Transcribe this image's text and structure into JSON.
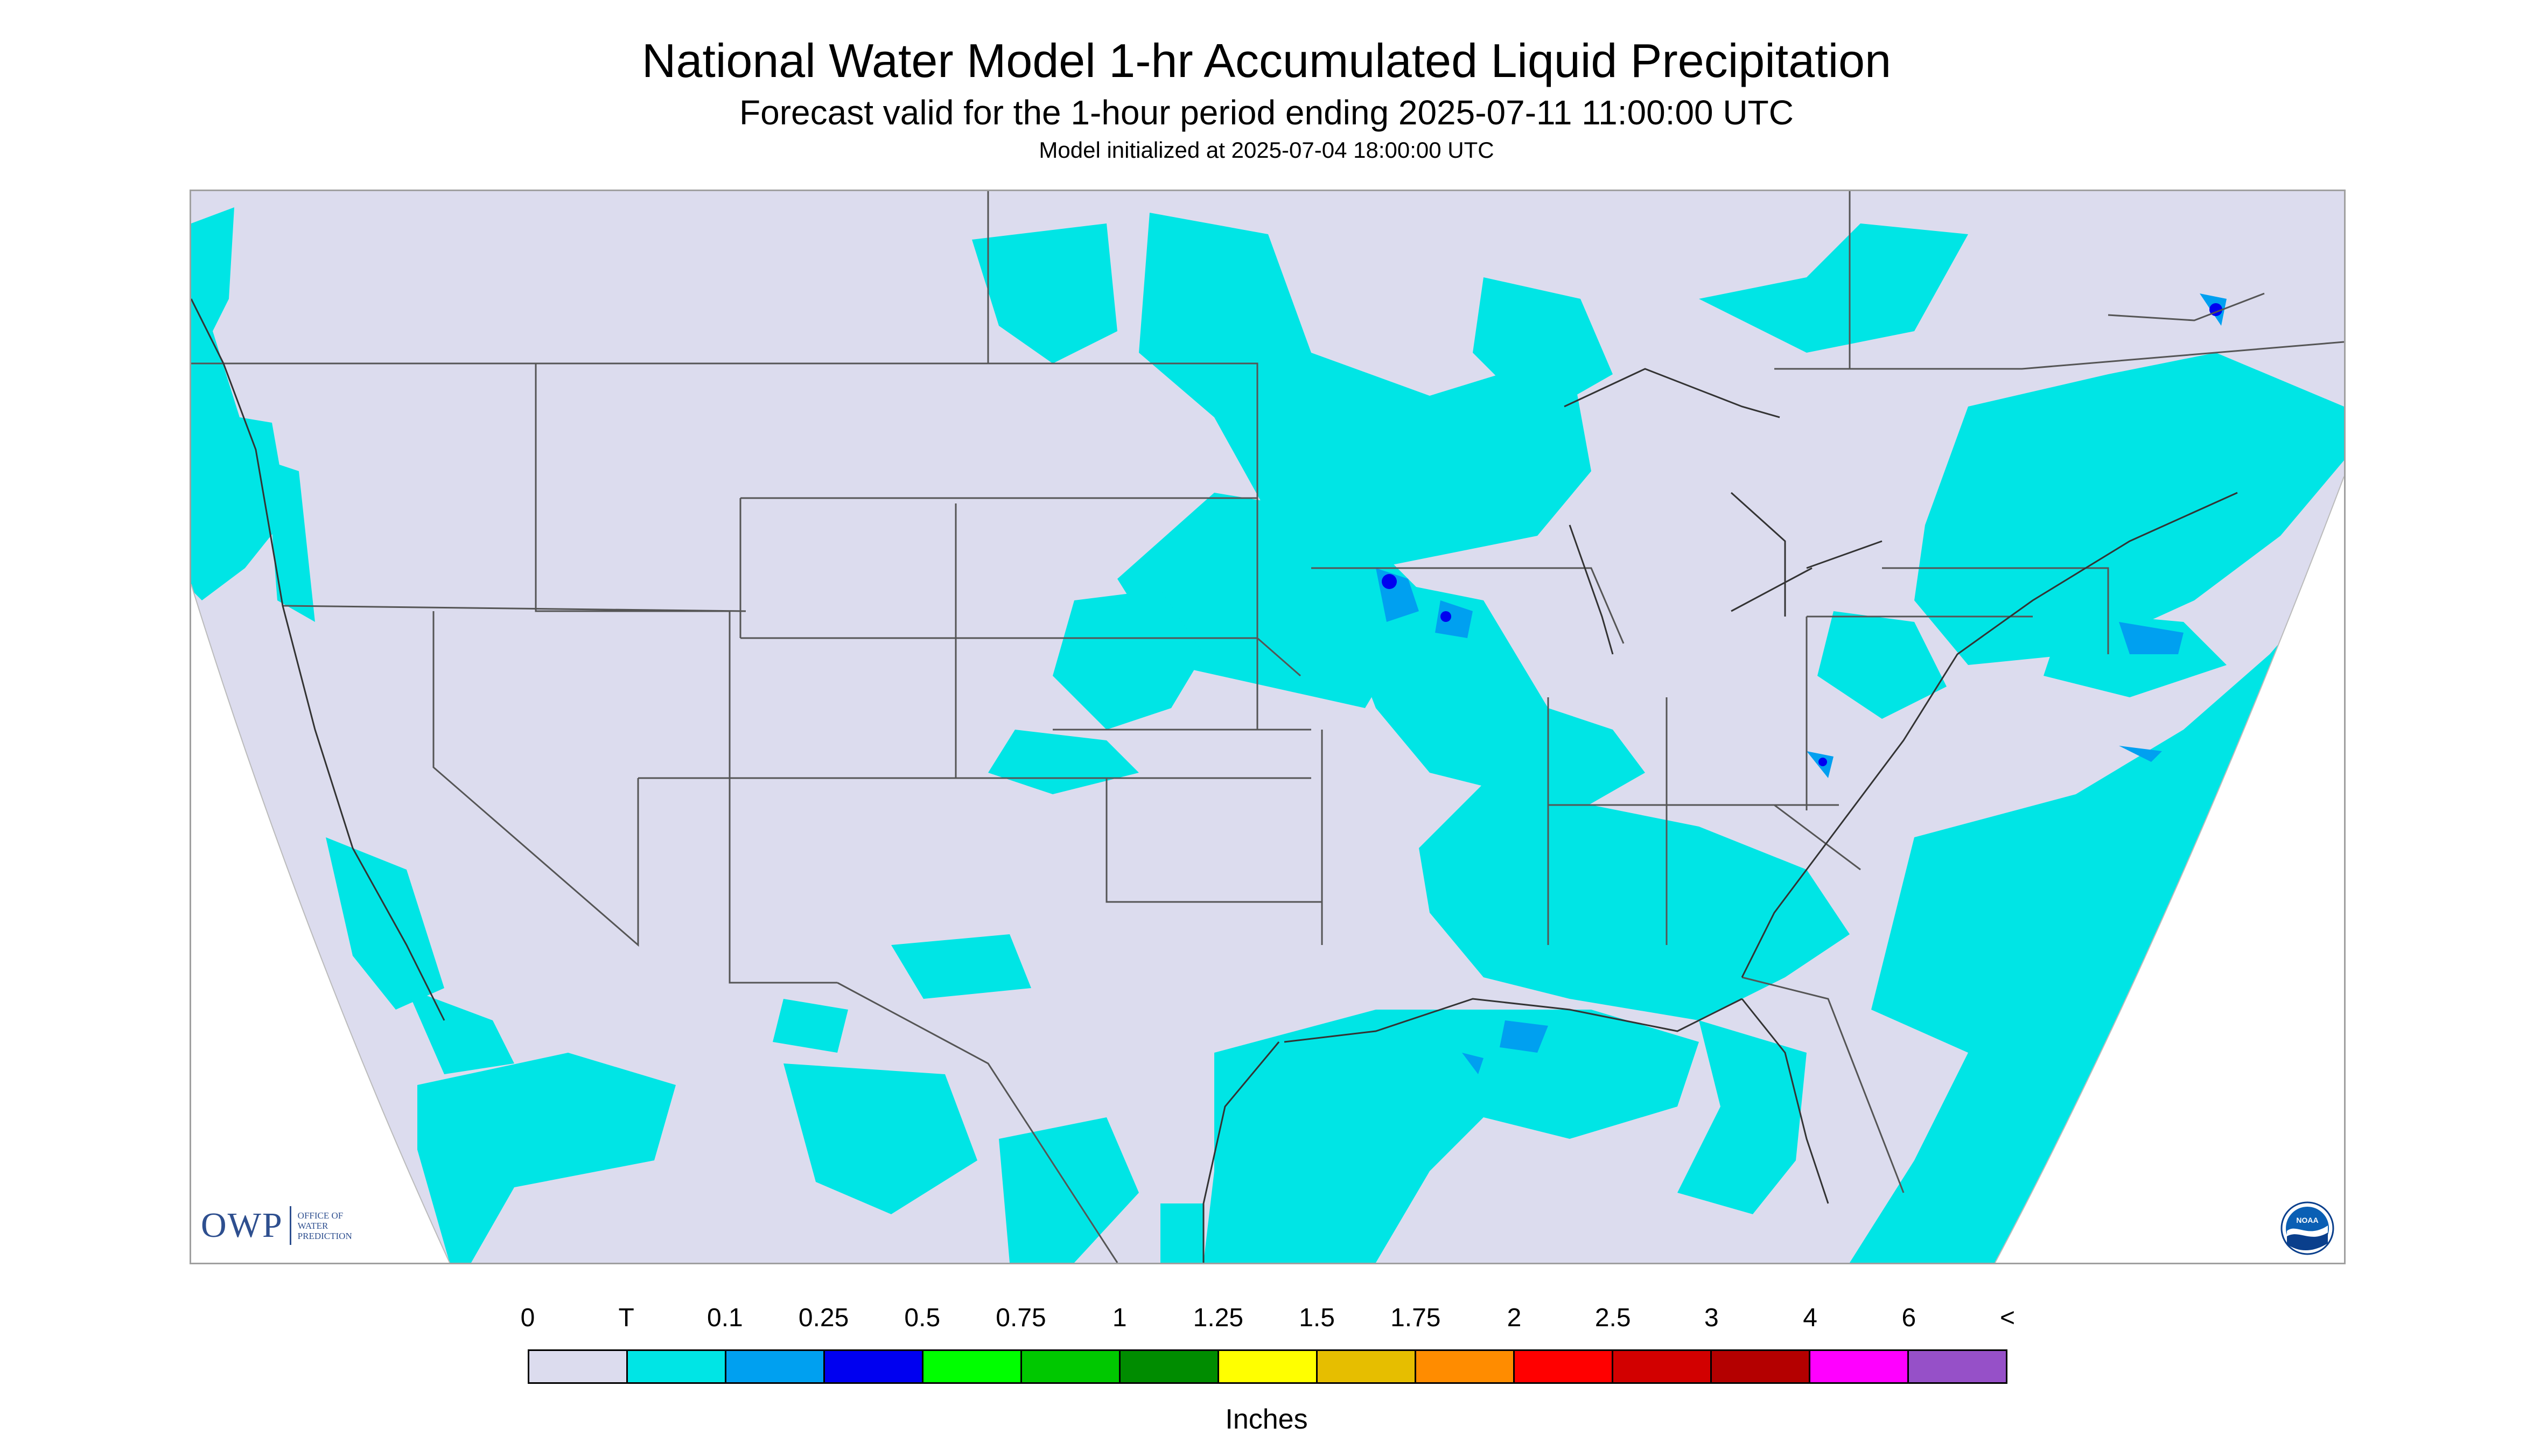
{
  "titles": {
    "main": "National Water Model 1-hr Accumulated Liquid Precipitation",
    "sub": "Forecast valid for the 1-hour period ending 2025-07-11 11:00:00 UTC",
    "init": "Model initialized at 2025-07-04 18:00:00 UTC"
  },
  "colors": {
    "background": "#dcdcee",
    "trace": "#00e5e5",
    "light": "#00a0f0",
    "medium": "#0000f0",
    "boundary": "#555555",
    "map_border": "#a0a0a0"
  },
  "logos": {
    "owp": {
      "text": "OWP",
      "sub_lines": [
        "OFFICE OF",
        "WATER",
        "PREDICTION"
      ]
    },
    "noaa": {
      "text": "NOAA",
      "icon": "noaa-seal"
    }
  },
  "legend": {
    "unit": "Inches",
    "labels": [
      "0",
      "T",
      "0.1",
      "0.25",
      "0.5",
      "0.75",
      "1",
      "1.25",
      "1.5",
      "1.75",
      "2",
      "2.5",
      "3",
      "4",
      "6",
      "<"
    ],
    "colors": [
      "#dcdcee",
      "#00e5e5",
      "#00a0f0",
      "#0000f0",
      "#00ff00",
      "#00c800",
      "#008c00",
      "#ffff00",
      "#e6be00",
      "#ff8c00",
      "#ff0000",
      "#d20000",
      "#b40000",
      "#ff00ff",
      "#9650c8"
    ]
  }
}
